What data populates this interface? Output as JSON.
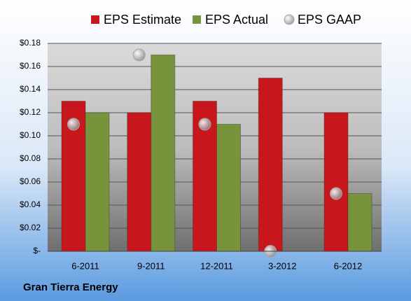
{
  "chart_data": {
    "type": "bar",
    "title": "Gran Tierra Energy",
    "categories": [
      "6-2011",
      "9-2011",
      "12-2011",
      "3-2012",
      "6-2012"
    ],
    "series": [
      {
        "name": "EPS Estimate",
        "color": "#c8161d",
        "values": [
          0.13,
          0.12,
          0.13,
          0.15,
          0.12
        ]
      },
      {
        "name": "EPS Actual",
        "color": "#77933c",
        "values": [
          0.12,
          0.17,
          0.11,
          null,
          0.05
        ]
      },
      {
        "name": "EPS GAAP",
        "type": "scatter",
        "color": "#a6a6a6",
        "values": [
          0.11,
          0.17,
          0.11,
          0,
          0.05
        ]
      }
    ],
    "ylim": [
      0,
      0.18
    ],
    "yticks": [
      {
        "value": 0,
        "label": "$-"
      },
      {
        "value": 0.02,
        "label": "$0.02"
      },
      {
        "value": 0.04,
        "label": "$0.04"
      },
      {
        "value": 0.06,
        "label": "$0.06"
      },
      {
        "value": 0.08,
        "label": "$0.08"
      },
      {
        "value": 0.1,
        "label": "$0.10"
      },
      {
        "value": 0.12,
        "label": "$0.12"
      },
      {
        "value": 0.14,
        "label": "$0.14"
      },
      {
        "value": 0.16,
        "label": "$0.16"
      },
      {
        "value": 0.18,
        "label": "$0.18"
      }
    ],
    "grid": true
  }
}
